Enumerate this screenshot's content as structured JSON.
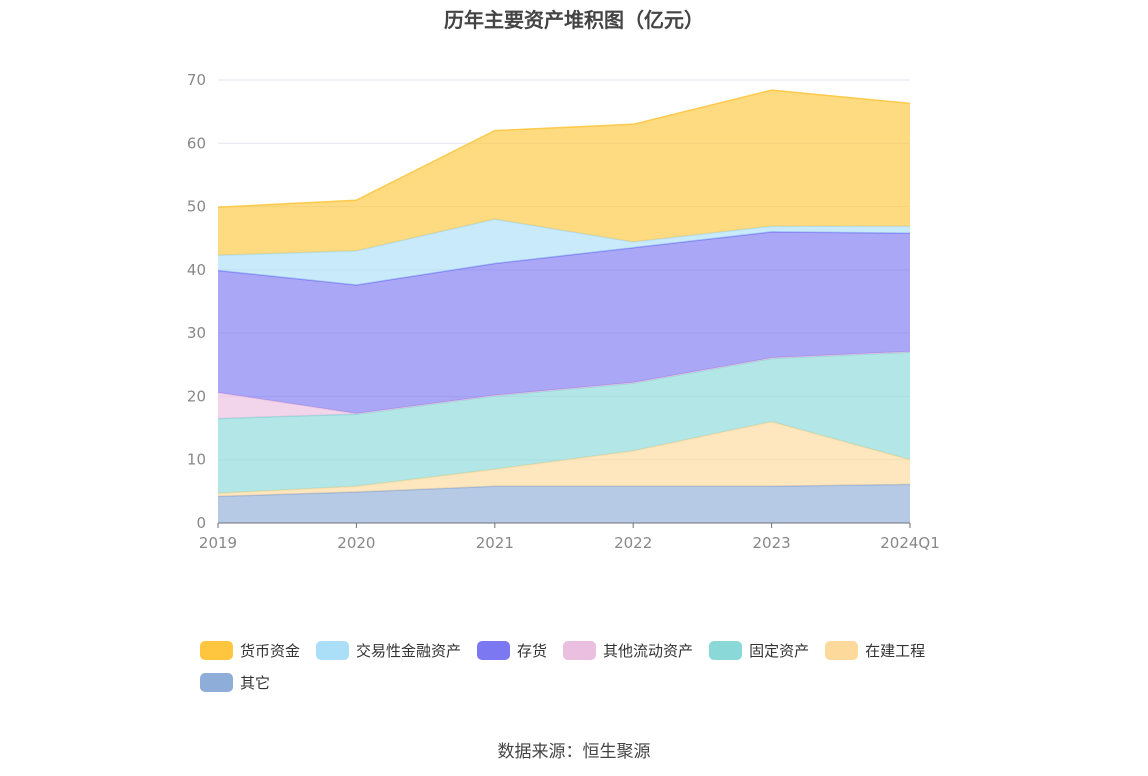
{
  "chart_data": {
    "type": "area",
    "stacked": true,
    "title": "历年主要资产堆积图（亿元）",
    "categories": [
      "2019",
      "2020",
      "2021",
      "2022",
      "2023",
      "2024Q1"
    ],
    "ylim": [
      0,
      70
    ],
    "yticks": [
      0,
      10,
      20,
      30,
      40,
      50,
      60,
      70
    ],
    "grid": true,
    "legend_position": "bottom",
    "series": [
      {
        "name": "其它",
        "color": "#8fadd9",
        "values": [
          4.2,
          4.9,
          5.8,
          5.8,
          5.8,
          6.1
        ]
      },
      {
        "name": "在建工程",
        "color": "#fdd99b",
        "values": [
          0.5,
          0.9,
          2.7,
          5.6,
          10.2,
          3.9
        ]
      },
      {
        "name": "固定资产",
        "color": "#8ad8d8",
        "values": [
          11.8,
          11.4,
          11.6,
          10.7,
          10.0,
          17.0
        ]
      },
      {
        "name": "其他流动资产",
        "color": "#ebbfdf",
        "values": [
          4.1,
          0.1,
          0.1,
          0.1,
          0.1,
          0.1
        ]
      },
      {
        "name": "存货",
        "color": "#7b78f1",
        "values": [
          19.3,
          20.3,
          20.8,
          21.3,
          19.9,
          18.7
        ]
      },
      {
        "name": "交易性金融资产",
        "color": "#aadff7",
        "values": [
          2.4,
          5.4,
          7.0,
          0.9,
          0.9,
          1.1
        ]
      },
      {
        "name": "货币资金",
        "color": "#fdc63e",
        "values": [
          7.6,
          8.0,
          14.0,
          18.6,
          21.5,
          19.4
        ]
      }
    ],
    "legend_order": [
      "货币资金",
      "交易性金融资产",
      "存货",
      "其他流动资产",
      "固定资产",
      "在建工程",
      "其它"
    ]
  },
  "source_text": "数据来源：恒生聚源"
}
